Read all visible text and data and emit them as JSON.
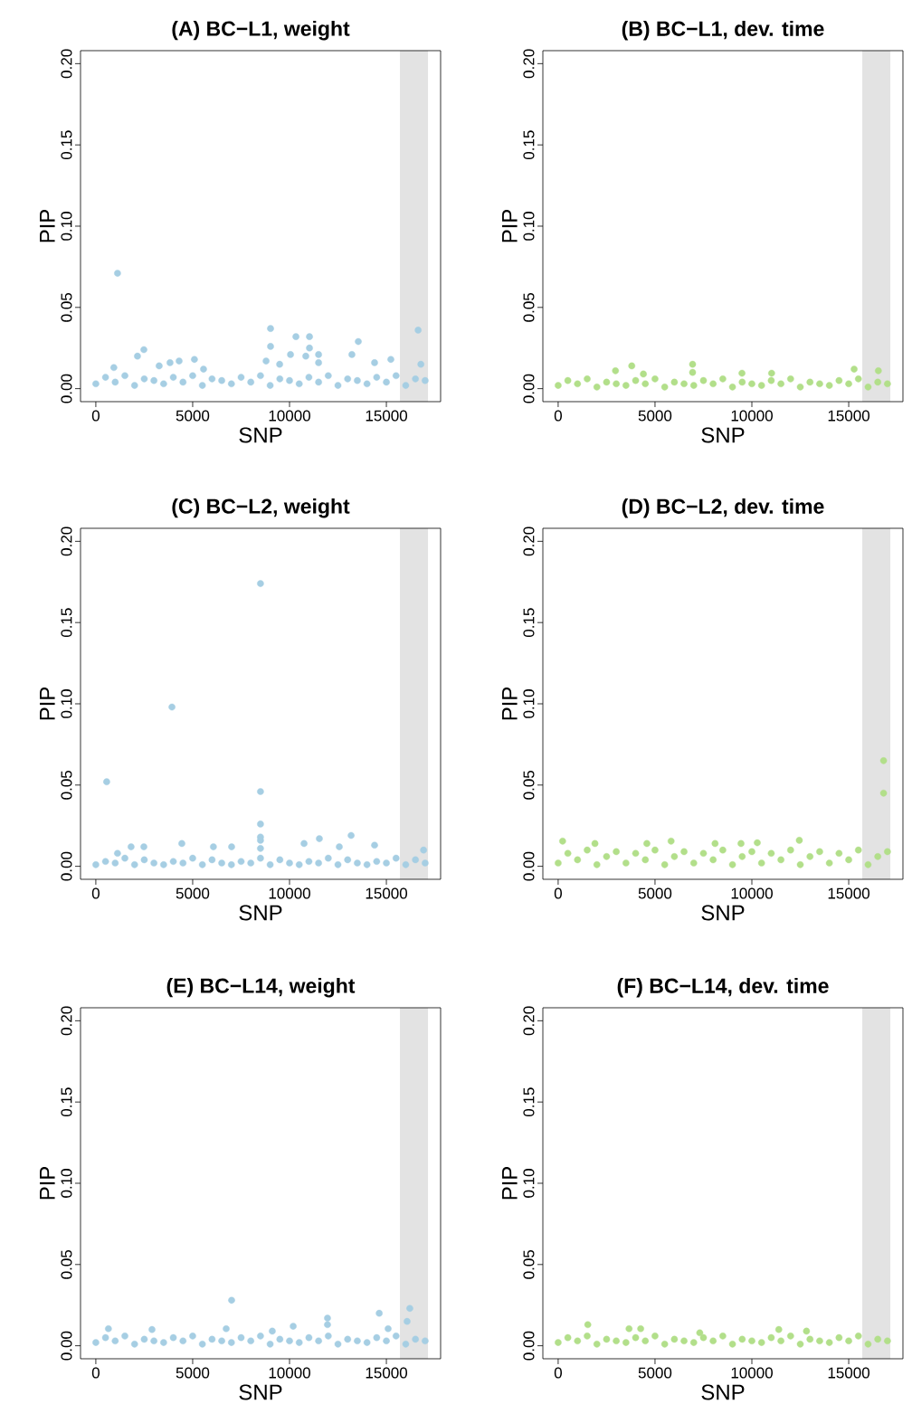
{
  "chart_data": [
    {
      "type": "scatter",
      "title": "(A) BC−L1, weight",
      "xlabel": "SNP",
      "ylabel": "PIP",
      "color": "#a6cee3",
      "marker": "circle",
      "xlim": [
        -790,
        17800
      ],
      "ylim": [
        -0.008,
        0.208
      ],
      "xticks": [
        0,
        5000,
        10000,
        15000
      ],
      "yticks": [
        {
          "value": 0,
          "label": "0.00"
        },
        {
          "value": 0.05,
          "label": "0.05"
        },
        {
          "value": 0.1,
          "label": "0.10"
        },
        {
          "value": 0.15,
          "label": "0.15"
        },
        {
          "value": 0.2,
          "label": "0.20"
        }
      ],
      "bands": [
        {
          "axis": "x",
          "from": 15700,
          "to": 17150,
          "color": "#e3e3e3"
        }
      ],
      "x": [
        0,
        500,
        1000,
        1500,
        2000,
        2500,
        3000,
        3500,
        4000,
        4500,
        5000,
        5500,
        6000,
        6500,
        7000,
        7500,
        8000,
        8500,
        9000,
        9500,
        10000,
        10500,
        11000,
        11500,
        12000,
        12500,
        13000,
        13500,
        14000,
        14500,
        15000,
        15500,
        16000,
        16500,
        17000,
        1120,
        9020,
        9020,
        10330,
        11030,
        11030,
        11500,
        10840,
        10050,
        13550,
        13220,
        16640,
        16780,
        2480,
        2150,
        5090,
        4300,
        3830,
        15230,
        14390,
        8790,
        9490,
        11500,
        930,
        3270,
        5560
      ],
      "values": [
        0.003,
        0.007,
        0.004,
        0.008,
        0.002,
        0.006,
        0.005,
        0.003,
        0.007,
        0.004,
        0.008,
        0.002,
        0.006,
        0.005,
        0.003,
        0.007,
        0.004,
        0.008,
        0.002,
        0.006,
        0.005,
        0.003,
        0.007,
        0.004,
        0.008,
        0.002,
        0.006,
        0.005,
        0.003,
        0.007,
        0.004,
        0.008,
        0.002,
        0.006,
        0.005,
        0.071,
        0.037,
        0.026,
        0.032,
        0.032,
        0.025,
        0.021,
        0.02,
        0.021,
        0.029,
        0.021,
        0.036,
        0.015,
        0.024,
        0.02,
        0.018,
        0.017,
        0.016,
        0.018,
        0.016,
        0.017,
        0.015,
        0.016,
        0.013,
        0.014,
        0.012
      ]
    },
    {
      "type": "scatter",
      "title": "(B) BC−L1, dev. time",
      "xlabel": "SNP",
      "ylabel": "PIP",
      "color": "#b2df8a",
      "marker": "circle",
      "xlim": [
        -790,
        17800
      ],
      "ylim": [
        -0.008,
        0.208
      ],
      "xticks": [
        0,
        5000,
        10000,
        15000
      ],
      "yticks": [
        {
          "value": 0,
          "label": "0.00"
        },
        {
          "value": 0.05,
          "label": "0.05"
        },
        {
          "value": 0.1,
          "label": "0.10"
        },
        {
          "value": 0.15,
          "label": "0.15"
        },
        {
          "value": 0.2,
          "label": "0.20"
        }
      ],
      "bands": [
        {
          "axis": "x",
          "from": 15700,
          "to": 17150,
          "color": "#e3e3e3"
        }
      ],
      "x": [
        0,
        500,
        1000,
        1500,
        2000,
        2500,
        3000,
        3500,
        4000,
        4500,
        5000,
        5500,
        6000,
        6500,
        7000,
        7500,
        8000,
        8500,
        9000,
        9500,
        10000,
        10500,
        11000,
        11500,
        12000,
        12500,
        13000,
        13500,
        14000,
        14500,
        15000,
        15500,
        16000,
        16500,
        17000,
        3800,
        2960,
        6940,
        6940,
        9490,
        11020,
        15280,
        16530,
        4400
      ],
      "values": [
        0.002,
        0.005,
        0.003,
        0.006,
        0.001,
        0.004,
        0.003,
        0.002,
        0.005,
        0.003,
        0.006,
        0.001,
        0.004,
        0.003,
        0.002,
        0.005,
        0.003,
        0.006,
        0.001,
        0.004,
        0.003,
        0.002,
        0.005,
        0.003,
        0.006,
        0.001,
        0.004,
        0.003,
        0.002,
        0.005,
        0.003,
        0.006,
        0.001,
        0.004,
        0.003,
        0.014,
        0.011,
        0.015,
        0.01,
        0.0095,
        0.0095,
        0.012,
        0.011,
        0.009
      ]
    },
    {
      "type": "scatter",
      "title": "(C) BC−L2, weight",
      "xlabel": "SNP",
      "ylabel": "PIP",
      "color": "#a6cee3",
      "marker": "circle",
      "xlim": [
        -790,
        17800
      ],
      "ylim": [
        -0.008,
        0.208
      ],
      "xticks": [
        0,
        5000,
        10000,
        15000
      ],
      "yticks": [
        {
          "value": 0,
          "label": "0.00"
        },
        {
          "value": 0.05,
          "label": "0.05"
        },
        {
          "value": 0.1,
          "label": "0.10"
        },
        {
          "value": 0.15,
          "label": "0.15"
        },
        {
          "value": 0.2,
          "label": "0.20"
        }
      ],
      "bands": [
        {
          "axis": "x",
          "from": 15700,
          "to": 17150,
          "color": "#e3e3e3"
        }
      ],
      "x": [
        0,
        500,
        1000,
        1500,
        2000,
        2500,
        3000,
        3500,
        4000,
        4500,
        5000,
        5500,
        6000,
        6500,
        7000,
        7500,
        8000,
        8500,
        9000,
        9500,
        10000,
        10500,
        11000,
        11500,
        12000,
        12500,
        13000,
        13500,
        14000,
        14500,
        15000,
        15500,
        16000,
        16500,
        17000,
        8500,
        3930,
        560,
        8500,
        8500,
        8500,
        8500,
        8500,
        13180,
        11540,
        10750,
        12570,
        14390,
        1820,
        2480,
        4440,
        6070,
        7010,
        16920,
        1120
      ],
      "values": [
        0.001,
        0.003,
        0.002,
        0.005,
        0.001,
        0.004,
        0.002,
        0.001,
        0.003,
        0.002,
        0.005,
        0.001,
        0.004,
        0.002,
        0.001,
        0.003,
        0.002,
        0.005,
        0.001,
        0.004,
        0.002,
        0.001,
        0.003,
        0.002,
        0.005,
        0.001,
        0.004,
        0.002,
        0.001,
        0.003,
        0.002,
        0.005,
        0.001,
        0.004,
        0.002,
        0.174,
        0.098,
        0.052,
        0.046,
        0.026,
        0.018,
        0.016,
        0.011,
        0.019,
        0.017,
        0.014,
        0.012,
        0.013,
        0.012,
        0.012,
        0.014,
        0.012,
        0.012,
        0.01,
        0.008
      ]
    },
    {
      "type": "scatter",
      "title": "(D) BC−L2, dev. time",
      "xlabel": "SNP",
      "ylabel": "PIP",
      "color": "#b2df8a",
      "marker": "circle",
      "xlim": [
        -790,
        17800
      ],
      "ylim": [
        -0.008,
        0.208
      ],
      "xticks": [
        0,
        5000,
        10000,
        15000
      ],
      "yticks": [
        {
          "value": 0,
          "label": "0.00"
        },
        {
          "value": 0.05,
          "label": "0.05"
        },
        {
          "value": 0.1,
          "label": "0.10"
        },
        {
          "value": 0.15,
          "label": "0.15"
        },
        {
          "value": 0.2,
          "label": "0.20"
        }
      ],
      "bands": [
        {
          "axis": "x",
          "from": 15700,
          "to": 17150,
          "color": "#e3e3e3"
        }
      ],
      "x": [
        0,
        500,
        1000,
        1500,
        2000,
        2500,
        3000,
        3500,
        4000,
        4500,
        5000,
        5500,
        6000,
        6500,
        7000,
        7500,
        8000,
        8500,
        9000,
        9500,
        10000,
        10500,
        11000,
        11500,
        12000,
        12500,
        13000,
        13500,
        14000,
        14500,
        15000,
        15500,
        16000,
        16500,
        17000,
        16800,
        16800,
        5830,
        230,
        12450,
        10280,
        9440,
        1900,
        4580,
        8100
      ],
      "values": [
        0.002,
        0.008,
        0.004,
        0.01,
        0.001,
        0.006,
        0.009,
        0.002,
        0.008,
        0.004,
        0.01,
        0.001,
        0.006,
        0.009,
        0.002,
        0.008,
        0.004,
        0.01,
        0.001,
        0.006,
        0.009,
        0.002,
        0.008,
        0.004,
        0.01,
        0.001,
        0.006,
        0.009,
        0.002,
        0.008,
        0.004,
        0.01,
        0.001,
        0.006,
        0.009,
        0.065,
        0.045,
        0.0155,
        0.0155,
        0.016,
        0.0145,
        0.014,
        0.014,
        0.014,
        0.014
      ]
    },
    {
      "type": "scatter",
      "title": "(E) BC−L14, weight",
      "xlabel": "SNP",
      "ylabel": "PIP",
      "color": "#a6cee3",
      "marker": "circle",
      "xlim": [
        -790,
        17800
      ],
      "ylim": [
        -0.008,
        0.208
      ],
      "xticks": [
        0,
        5000,
        10000,
        15000
      ],
      "yticks": [
        {
          "value": 0,
          "label": "0.00"
        },
        {
          "value": 0.05,
          "label": "0.05"
        },
        {
          "value": 0.1,
          "label": "0.10"
        },
        {
          "value": 0.15,
          "label": "0.15"
        },
        {
          "value": 0.2,
          "label": "0.20"
        }
      ],
      "bands": [
        {
          "axis": "x",
          "from": 15700,
          "to": 17150,
          "color": "#e3e3e3"
        }
      ],
      "x": [
        0,
        500,
        1000,
        1500,
        2000,
        2500,
        3000,
        3500,
        4000,
        4500,
        5000,
        5500,
        6000,
        6500,
        7000,
        7500,
        8000,
        8500,
        9000,
        9500,
        10000,
        10500,
        11000,
        11500,
        12000,
        12500,
        13000,
        13500,
        14000,
        14500,
        15000,
        15500,
        16000,
        16500,
        17000,
        7010,
        16210,
        14630,
        16070,
        11960,
        11960,
        10190,
        650,
        2900,
        15090,
        6730,
        9110
      ],
      "values": [
        0.002,
        0.005,
        0.003,
        0.006,
        0.001,
        0.004,
        0.003,
        0.002,
        0.005,
        0.003,
        0.006,
        0.001,
        0.004,
        0.003,
        0.002,
        0.005,
        0.003,
        0.006,
        0.001,
        0.004,
        0.003,
        0.002,
        0.005,
        0.003,
        0.006,
        0.001,
        0.004,
        0.003,
        0.002,
        0.005,
        0.003,
        0.006,
        0.001,
        0.004,
        0.003,
        0.028,
        0.023,
        0.02,
        0.015,
        0.017,
        0.013,
        0.012,
        0.0105,
        0.01,
        0.0105,
        0.0105,
        0.009
      ]
    },
    {
      "type": "scatter",
      "title": "(F) BC−L14, dev. time",
      "xlabel": "SNP",
      "ylabel": "PIP",
      "color": "#b2df8a",
      "marker": "circle",
      "xlim": [
        -790,
        17800
      ],
      "ylim": [
        -0.008,
        0.208
      ],
      "xticks": [
        0,
        5000,
        10000,
        15000
      ],
      "yticks": [
        {
          "value": 0,
          "label": "0.00"
        },
        {
          "value": 0.05,
          "label": "0.05"
        },
        {
          "value": 0.1,
          "label": "0.10"
        },
        {
          "value": 0.15,
          "label": "0.15"
        },
        {
          "value": 0.2,
          "label": "0.20"
        }
      ],
      "bands": [
        {
          "axis": "x",
          "from": 15700,
          "to": 17150,
          "color": "#e3e3e3"
        }
      ],
      "x": [
        0,
        500,
        1000,
        1500,
        2000,
        2500,
        3000,
        3500,
        4000,
        4500,
        5000,
        5500,
        6000,
        6500,
        7000,
        7500,
        8000,
        8500,
        9000,
        9500,
        10000,
        10500,
        11000,
        11500,
        12000,
        12500,
        13000,
        13500,
        14000,
        14500,
        15000,
        15500,
        16000,
        16500,
        17000,
        1530,
        3660,
        4260,
        11390,
        12820,
        7310
      ],
      "values": [
        0.002,
        0.005,
        0.003,
        0.006,
        0.001,
        0.004,
        0.003,
        0.002,
        0.005,
        0.003,
        0.006,
        0.001,
        0.004,
        0.003,
        0.002,
        0.005,
        0.003,
        0.006,
        0.001,
        0.004,
        0.003,
        0.002,
        0.005,
        0.003,
        0.006,
        0.001,
        0.004,
        0.003,
        0.002,
        0.005,
        0.003,
        0.006,
        0.001,
        0.004,
        0.003,
        0.013,
        0.0105,
        0.0105,
        0.01,
        0.009,
        0.008
      ]
    }
  ]
}
